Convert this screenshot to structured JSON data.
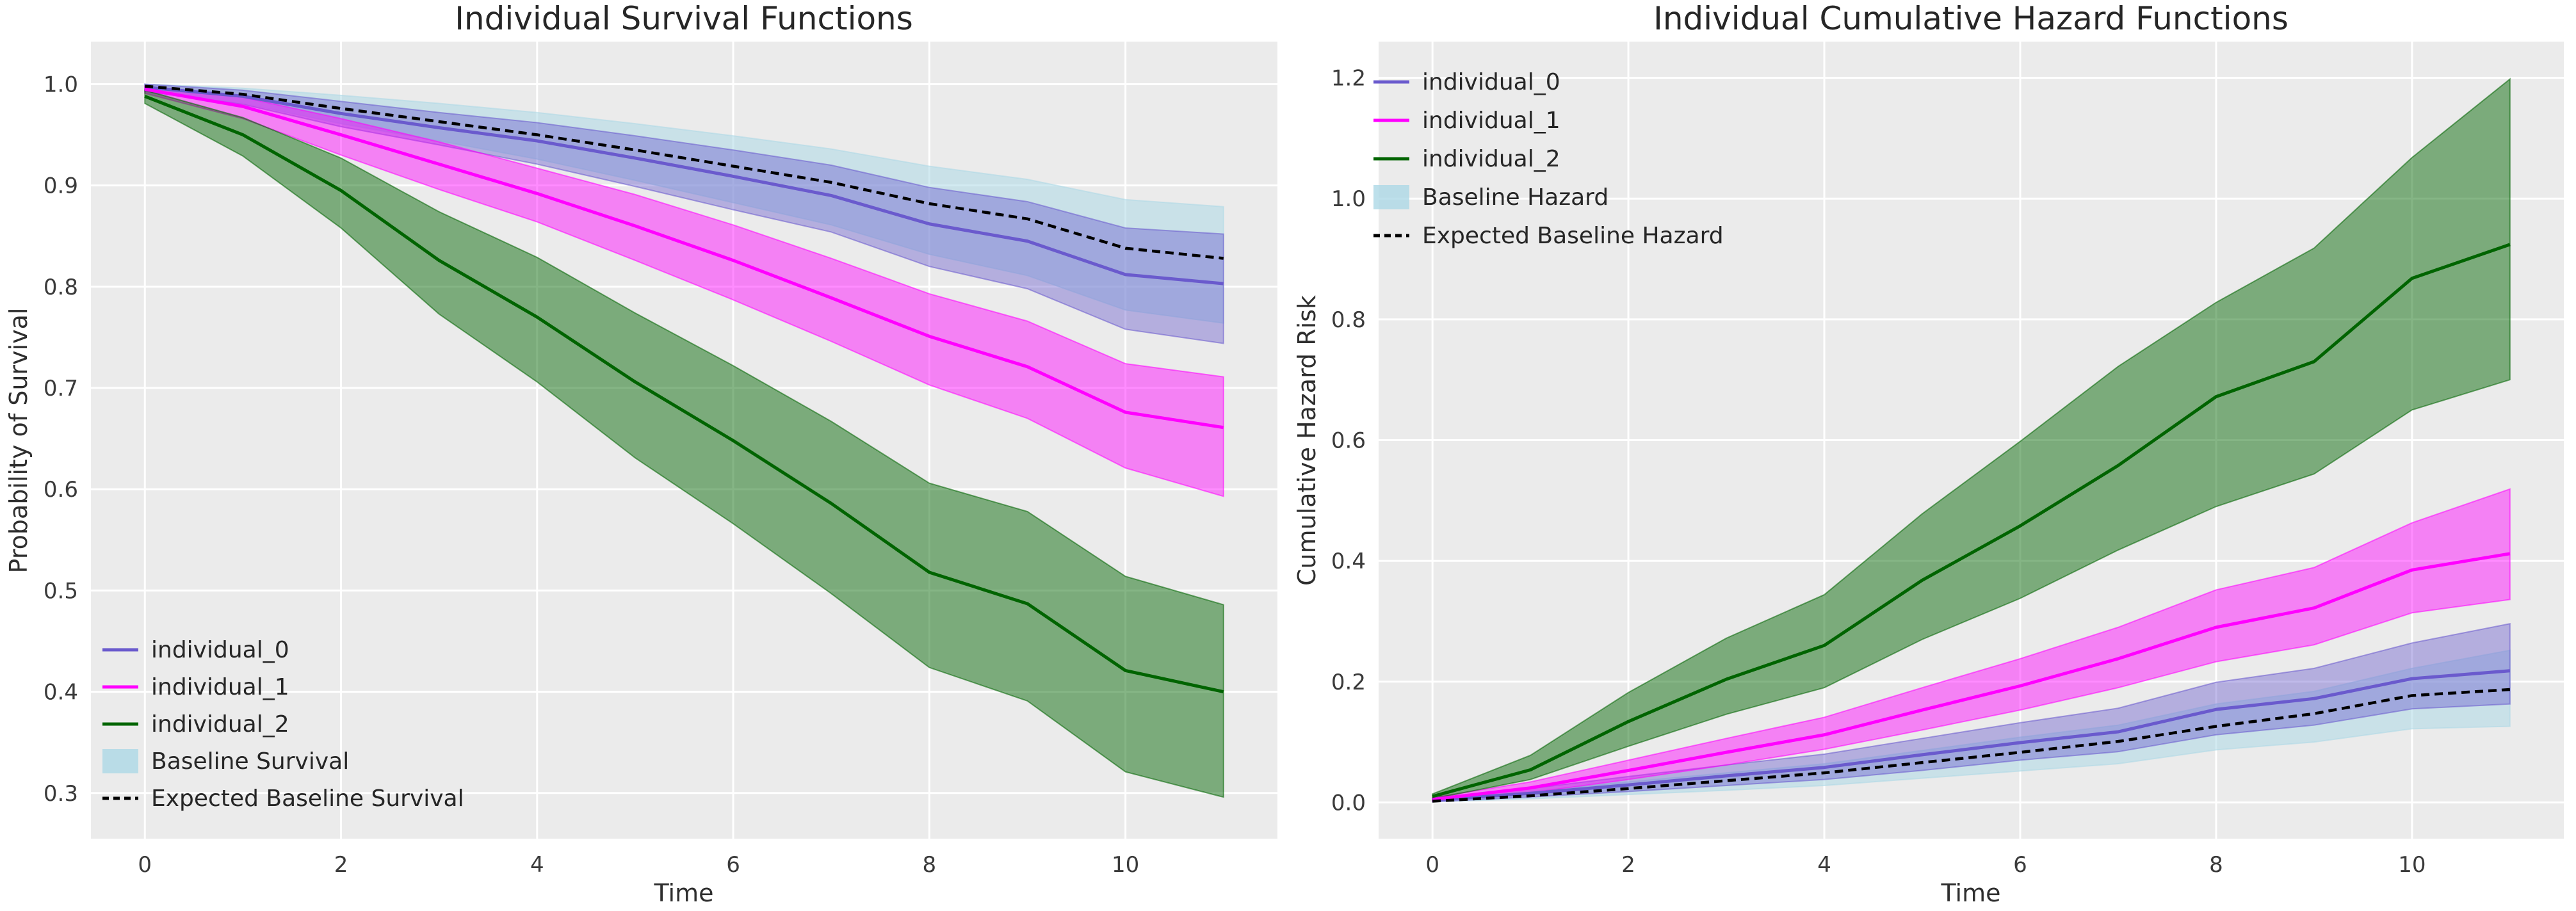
{
  "page": {
    "background": "#ffffff"
  },
  "style": {
    "panel_bg": "#ebebeb",
    "grid_color": "#ffffff",
    "title_color": "#262626",
    "tick_color": "#3a3a3a"
  },
  "chart_data": [
    {
      "type": "line",
      "title": "Individual Survival Functions",
      "xlabel": "Time",
      "ylabel": "Probability of Survival",
      "x_domain": [
        -0.55,
        11.55
      ],
      "y_domain": [
        0.255,
        1.042
      ],
      "x_ticks": [
        0,
        2,
        4,
        6,
        8,
        10
      ],
      "y_ticks": [
        1.0,
        0.9,
        0.8,
        0.7,
        0.6,
        0.5,
        0.4,
        0.3
      ],
      "grid": true,
      "legend_position": "lower-left",
      "x": [
        0,
        1,
        2,
        3,
        4,
        5,
        6,
        7,
        8,
        9,
        10,
        11
      ],
      "bands": [
        {
          "name": "baseline-survival-band",
          "label": "Baseline Survival",
          "color": "#add8e6",
          "alpha": 0.55,
          "top": [
            1.0,
            0.996,
            0.989,
            0.981,
            0.972,
            0.961,
            0.949,
            0.936,
            0.919,
            0.906,
            0.886,
            0.879
          ],
          "bottom": [
            0.992,
            0.981,
            0.961,
            0.944,
            0.926,
            0.905,
            0.883,
            0.861,
            0.832,
            0.811,
            0.777,
            0.764
          ]
        },
        {
          "name": "individual-0-band",
          "label": "individual_0 CI",
          "color": "#6a5acd",
          "alpha": 0.42,
          "top": [
            1.0,
            0.994,
            0.983,
            0.972,
            0.962,
            0.949,
            0.935,
            0.92,
            0.898,
            0.884,
            0.858,
            0.852
          ],
          "bottom": [
            0.993,
            0.98,
            0.958,
            0.94,
            0.921,
            0.899,
            0.876,
            0.854,
            0.82,
            0.798,
            0.758,
            0.744
          ]
        },
        {
          "name": "individual-1-band",
          "label": "individual_1 CI",
          "color": "#ff00ff",
          "alpha": 0.45,
          "top": [
            0.998,
            0.987,
            0.966,
            0.943,
            0.917,
            0.891,
            0.861,
            0.828,
            0.793,
            0.766,
            0.724,
            0.711
          ],
          "bottom": [
            0.991,
            0.966,
            0.93,
            0.896,
            0.864,
            0.826,
            0.787,
            0.746,
            0.703,
            0.67,
            0.621,
            0.593
          ]
        },
        {
          "name": "individual-2-band",
          "label": "individual_2 CI",
          "color": "#006400",
          "alpha": 0.48,
          "top": [
            0.994,
            0.967,
            0.927,
            0.874,
            0.829,
            0.774,
            0.722,
            0.667,
            0.606,
            0.578,
            0.514,
            0.486
          ],
          "bottom": [
            0.981,
            0.929,
            0.858,
            0.773,
            0.706,
            0.631,
            0.566,
            0.497,
            0.424,
            0.391,
            0.321,
            0.296
          ]
        }
      ],
      "lines": [
        {
          "name": "individual_0",
          "color": "#6a5acd",
          "width": 5,
          "dash": null,
          "values": [
            0.997,
            0.988,
            0.971,
            0.957,
            0.944,
            0.927,
            0.909,
            0.89,
            0.862,
            0.845,
            0.812,
            0.803
          ]
        },
        {
          "name": "individual_1",
          "color": "#ff00ff",
          "width": 5,
          "dash": null,
          "values": [
            0.995,
            0.978,
            0.95,
            0.921,
            0.892,
            0.86,
            0.826,
            0.789,
            0.751,
            0.721,
            0.676,
            0.661
          ]
        },
        {
          "name": "individual_2",
          "color": "#006400",
          "width": 5,
          "dash": null,
          "values": [
            0.988,
            0.95,
            0.895,
            0.826,
            0.77,
            0.706,
            0.648,
            0.586,
            0.518,
            0.487,
            0.421,
            0.4
          ]
        },
        {
          "name": "Expected Baseline Survival",
          "color": "#000000",
          "width": 4.5,
          "dash": "13 8",
          "values": [
            0.998,
            0.99,
            0.976,
            0.963,
            0.95,
            0.935,
            0.919,
            0.903,
            0.882,
            0.867,
            0.838,
            0.828
          ]
        }
      ],
      "legend": [
        {
          "label": "individual_0",
          "swatch": "line",
          "color": "#6a5acd"
        },
        {
          "label": "individual_1",
          "swatch": "line",
          "color": "#ff00ff"
        },
        {
          "label": "individual_2",
          "swatch": "line",
          "color": "#006400"
        },
        {
          "label": "Baseline Survival",
          "swatch": "patch",
          "color": "#add8e6"
        },
        {
          "label": "Expected Baseline Survival",
          "swatch": "dashed-line",
          "color": "#000000"
        }
      ]
    },
    {
      "type": "line",
      "title": "Individual Cumulative Hazard Functions",
      "xlabel": "Time",
      "ylabel": "Cumulative Hazard Risk",
      "x_domain": [
        -0.55,
        11.55
      ],
      "y_domain": [
        -0.06,
        1.26
      ],
      "x_ticks": [
        0,
        2,
        4,
        6,
        8,
        10
      ],
      "y_ticks": [
        1.2,
        1.0,
        0.8,
        0.6,
        0.4,
        0.2,
        0.0
      ],
      "grid": true,
      "legend_position": "upper-left",
      "x": [
        0,
        1,
        2,
        3,
        4,
        5,
        6,
        7,
        8,
        9,
        10,
        11
      ],
      "bands": [
        {
          "name": "baseline-hazard-band",
          "label": "Baseline Hazard",
          "color": "#add8e6",
          "alpha": 0.55,
          "top": [
            0.006,
            0.018,
            0.034,
            0.049,
            0.064,
            0.086,
            0.108,
            0.128,
            0.163,
            0.184,
            0.222,
            0.252
          ],
          "bottom": [
            0.001,
            0.006,
            0.013,
            0.02,
            0.028,
            0.04,
            0.052,
            0.064,
            0.087,
            0.1,
            0.122,
            0.126
          ]
        },
        {
          "name": "individual-0-band",
          "label": "individual_0 CI",
          "color": "#6a5acd",
          "alpha": 0.42,
          "top": [
            0.007,
            0.023,
            0.043,
            0.062,
            0.08,
            0.106,
            0.132,
            0.156,
            0.199,
            0.222,
            0.264,
            0.296
          ],
          "bottom": [
            0.001,
            0.009,
            0.018,
            0.028,
            0.038,
            0.053,
            0.07,
            0.084,
            0.112,
            0.128,
            0.155,
            0.163
          ]
        },
        {
          "name": "individual-1-band",
          "label": "individual_1 CI",
          "color": "#ff00ff",
          "alpha": 0.45,
          "top": [
            0.008,
            0.034,
            0.07,
            0.106,
            0.141,
            0.19,
            0.238,
            0.29,
            0.352,
            0.389,
            0.463,
            0.519
          ],
          "bottom": [
            0.002,
            0.016,
            0.038,
            0.062,
            0.088,
            0.12,
            0.153,
            0.19,
            0.233,
            0.261,
            0.314,
            0.336
          ]
        },
        {
          "name": "individual-2-band",
          "label": "individual_2 CI",
          "color": "#006400",
          "alpha": 0.48,
          "top": [
            0.014,
            0.078,
            0.182,
            0.272,
            0.344,
            0.478,
            0.598,
            0.722,
            0.828,
            0.918,
            1.068,
            1.198
          ],
          "bottom": [
            0.006,
            0.038,
            0.093,
            0.146,
            0.19,
            0.27,
            0.338,
            0.418,
            0.49,
            0.544,
            0.65,
            0.7
          ]
        }
      ],
      "lines": [
        {
          "name": "individual_0",
          "color": "#6a5acd",
          "width": 5,
          "dash": null,
          "values": [
            0.004,
            0.015,
            0.029,
            0.044,
            0.058,
            0.079,
            0.099,
            0.117,
            0.154,
            0.172,
            0.205,
            0.218
          ]
        },
        {
          "name": "individual_1",
          "color": "#ff00ff",
          "width": 5,
          "dash": null,
          "values": [
            0.005,
            0.024,
            0.053,
            0.083,
            0.112,
            0.153,
            0.193,
            0.238,
            0.29,
            0.322,
            0.385,
            0.412
          ]
        },
        {
          "name": "individual_2",
          "color": "#006400",
          "width": 5,
          "dash": null,
          "values": [
            0.01,
            0.054,
            0.134,
            0.204,
            0.26,
            0.368,
            0.458,
            0.558,
            0.672,
            0.73,
            0.868,
            0.924
          ]
        },
        {
          "name": "Expected Baseline Hazard",
          "color": "#000000",
          "width": 4.5,
          "dash": "13 8",
          "values": [
            0.002,
            0.011,
            0.023,
            0.036,
            0.049,
            0.066,
            0.083,
            0.101,
            0.126,
            0.147,
            0.177,
            0.187
          ]
        }
      ],
      "legend": [
        {
          "label": "individual_0",
          "swatch": "line",
          "color": "#6a5acd"
        },
        {
          "label": "individual_1",
          "swatch": "line",
          "color": "#ff00ff"
        },
        {
          "label": "individual_2",
          "swatch": "line",
          "color": "#006400"
        },
        {
          "label": "Baseline Hazard",
          "swatch": "patch",
          "color": "#add8e6"
        },
        {
          "label": "Expected Baseline Hazard",
          "swatch": "dashed-line",
          "color": "#000000"
        }
      ]
    }
  ]
}
